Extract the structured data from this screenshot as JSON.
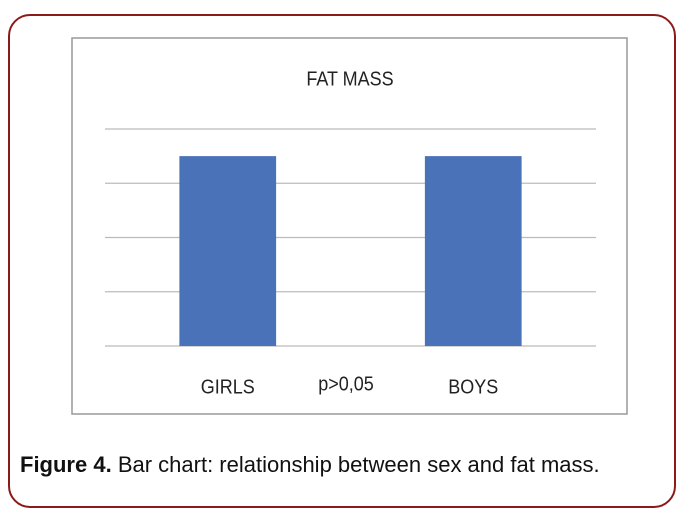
{
  "chart_data": {
    "type": "bar",
    "title": "FAT MASS",
    "categories": [
      "GIRLS",
      "BOYS"
    ],
    "values": [
      3.5,
      3.5
    ],
    "color": "#4a72b8",
    "annotation": "p>0,05",
    "ylim": [
      0,
      4
    ],
    "yticks": [
      0,
      1,
      2,
      3,
      4
    ],
    "grid": true
  },
  "caption": {
    "label": "Figure 4.",
    "text": "Bar chart: relationship between sex and fat mass."
  }
}
